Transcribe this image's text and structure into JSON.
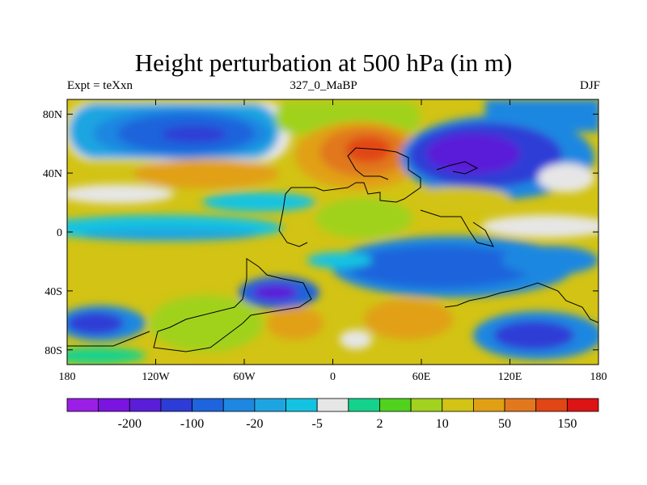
{
  "chart_data": {
    "type": "heatmap",
    "title": "Height perturbation at 500 hPa (in m)",
    "subtitle_left": "Expt = teXxn",
    "subtitle_center": "327_0_MaBP",
    "subtitle_right": "DJF",
    "x_ticks": [
      {
        "value": -180,
        "label": "180"
      },
      {
        "value": -120,
        "label": "120W"
      },
      {
        "value": -60,
        "label": "60W"
      },
      {
        "value": 0,
        "label": "0"
      },
      {
        "value": 60,
        "label": "60E"
      },
      {
        "value": 120,
        "label": "120E"
      },
      {
        "value": 180,
        "label": "180"
      }
    ],
    "y_ticks": [
      {
        "value": 80,
        "label": "80N"
      },
      {
        "value": 40,
        "label": "40N"
      },
      {
        "value": 0,
        "label": "0"
      },
      {
        "value": -40,
        "label": "40S"
      },
      {
        "value": -80,
        "label": "80S"
      }
    ],
    "xlim": [
      -180,
      180
    ],
    "ylim": [
      -90,
      90
    ],
    "colorbar": {
      "colors": [
        "#9b1ee6",
        "#7a14e0",
        "#5a1ed8",
        "#2d3cd6",
        "#1e64dc",
        "#1e87e1",
        "#1ea5e1",
        "#14c3e1",
        "#e6e6e6",
        "#14d28c",
        "#50d21e",
        "#a0d21e",
        "#d2c314",
        "#e1a014",
        "#e1781e",
        "#e14614",
        "#dc1414"
      ],
      "labels": [
        {
          "after_index": 1,
          "text": "-200"
        },
        {
          "after_index": 3,
          "text": "-100"
        },
        {
          "after_index": 5,
          "text": "-20"
        },
        {
          "after_index": 7,
          "text": "-5"
        },
        {
          "after_index": 9,
          "text": "2"
        },
        {
          "after_index": 11,
          "text": "10"
        },
        {
          "after_index": 13,
          "text": "50"
        },
        {
          "after_index": 15,
          "text": "150"
        }
      ]
    }
  }
}
